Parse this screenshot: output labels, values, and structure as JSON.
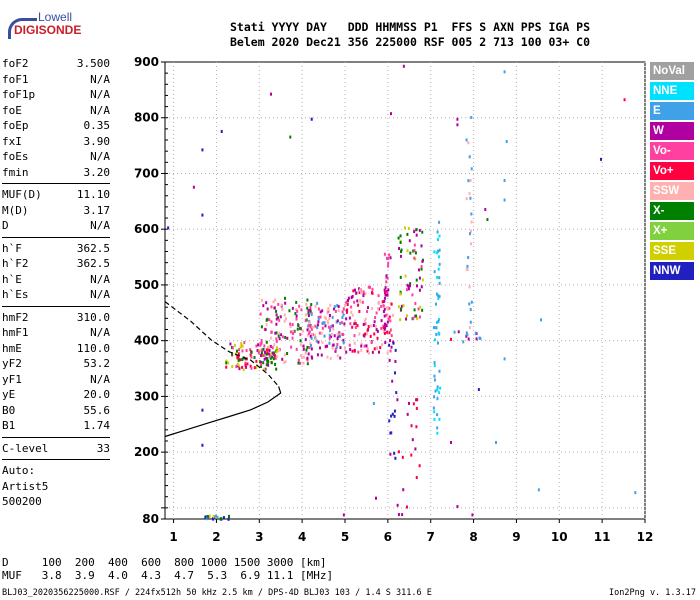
{
  "logo": {
    "top": "Lowell",
    "bottom": "DIGISONDE"
  },
  "header": {
    "line1": "Stati YYYY DAY   DDD HHMMSS P1  FFS S AXN PPS IGA PS",
    "line2": "Belem 2020 Dec21 356 225000 RSF 005 2 713 100 03+ C0"
  },
  "params": [
    {
      "label": "foF2",
      "value": "3.500"
    },
    {
      "label": "foF1",
      "value": "N/A"
    },
    {
      "label": "foF1p",
      "value": "N/A"
    },
    {
      "label": "foE",
      "value": "N/A"
    },
    {
      "label": "foEp",
      "value": "0.35"
    },
    {
      "label": "fxI",
      "value": "3.90"
    },
    {
      "label": "foEs",
      "value": "N/A"
    },
    {
      "label": "fmin",
      "value": "3.20"
    },
    {
      "sep": true
    },
    {
      "label": "MUF(D)",
      "value": "11.10"
    },
    {
      "label": "M(D)",
      "value": "3.17"
    },
    {
      "label": "D",
      "value": "N/A"
    },
    {
      "sep": true
    },
    {
      "label": "h`F",
      "value": "362.5"
    },
    {
      "label": "h`F2",
      "value": "362.5"
    },
    {
      "label": "h`E",
      "value": "N/A"
    },
    {
      "label": "h`Es",
      "value": "N/A"
    },
    {
      "sep": true
    },
    {
      "label": "hmF2",
      "value": "310.0"
    },
    {
      "label": "hmF1",
      "value": "N/A"
    },
    {
      "label": "hmE",
      "value": "110.0"
    },
    {
      "label": "yF2",
      "value": "53.2"
    },
    {
      "label": "yF1",
      "value": "N/A"
    },
    {
      "label": "yE",
      "value": "20.0"
    },
    {
      "label": "B0",
      "value": "55.6"
    },
    {
      "label": "B1",
      "value": "1.74"
    },
    {
      "sep": true
    },
    {
      "label": "C-level",
      "value": "33"
    },
    {
      "sep": true
    },
    {
      "auto": "Auto:"
    },
    {
      "auto": "Artist5"
    },
    {
      "auto": "500200"
    }
  ],
  "legend": [
    {
      "label": "NoVal",
      "color": "#a0a0a0"
    },
    {
      "label": "NNE",
      "color": "#00e0ff"
    },
    {
      "label": "E",
      "color": "#40a0e8"
    },
    {
      "label": "W",
      "color": "#b000a0"
    },
    {
      "label": "Vo-",
      "color": "#ff40a0"
    },
    {
      "label": "Vo+",
      "color": "#ff0040"
    },
    {
      "label": "SSW",
      "color": "#ffb0b0"
    },
    {
      "label": "X-",
      "color": "#008000"
    },
    {
      "label": "X+",
      "color": "#80d040"
    },
    {
      "label": "SSE",
      "color": "#d0d000"
    },
    {
      "label": "NNW",
      "color": "#2020c0"
    }
  ],
  "bottom": {
    "line1": "D     100  200  400  600  800 1000 1500 3000 [km]",
    "line2": "MUF   3.8  3.9  4.0  4.3  4.7  5.3  6.9 11.1 [MHz]"
  },
  "footer": {
    "left": "BLJ03_2020356225000.RSF / 224fx512h 50 kHz 2.5 km / DPS-4D BLJ03 103 / 1.4 S 311.6 E",
    "right": "Ion2Png v. 1.3.17"
  },
  "chart_data": {
    "type": "scatter",
    "xlim": [
      0.8,
      12.0
    ],
    "ylim": [
      80,
      900
    ],
    "xticks": [
      1,
      2,
      3,
      4,
      5,
      6,
      7,
      8,
      9,
      10,
      11,
      12
    ],
    "yticks": [
      80,
      100,
      200,
      300,
      400,
      500,
      600,
      700,
      800,
      900
    ],
    "grid": true,
    "profile_solid": [
      [
        0.8,
        228
      ],
      [
        1.3,
        240
      ],
      [
        1.8,
        252
      ],
      [
        2.3,
        264
      ],
      [
        2.8,
        276
      ],
      [
        3.2,
        290
      ],
      [
        3.5,
        306
      ],
      [
        3.45,
        318
      ]
    ],
    "profile_dashed": [
      [
        0.8,
        470
      ],
      [
        1.4,
        435
      ],
      [
        1.9,
        400
      ],
      [
        2.3,
        380
      ],
      [
        2.8,
        365
      ],
      [
        3.2,
        340
      ],
      [
        3.45,
        318
      ]
    ],
    "clusters": [
      {
        "x": [
          2.2,
          3.4
        ],
        "y": [
          350,
          400
        ],
        "colors": [
          "#b000a0",
          "#ff40a0",
          "#008000",
          "#d0d000",
          "#ff0040"
        ],
        "n": 110
      },
      {
        "x": [
          3.0,
          4.2
        ],
        "y": [
          360,
          480
        ],
        "colors": [
          "#b000a0",
          "#ff40a0",
          "#ffb0b0",
          "#008000"
        ],
        "n": 140
      },
      {
        "x": [
          4.1,
          5.0
        ],
        "y": [
          370,
          470
        ],
        "colors": [
          "#b000a0",
          "#ff40a0",
          "#ffb0b0",
          "#40a0e8"
        ],
        "n": 120
      },
      {
        "x": [
          5.0,
          6.1
        ],
        "y": [
          380,
          500
        ],
        "colors": [
          "#b000a0",
          "#ff40a0",
          "#ffb0b0",
          "#ff0040"
        ],
        "n": 140
      },
      {
        "x": [
          6.2,
          6.8
        ],
        "y": [
          440,
          610
        ],
        "colors": [
          "#b000a0",
          "#008000",
          "#ff40a0",
          "#d0d000"
        ],
        "n": 70
      },
      {
        "x": [
          5.9,
          6.05
        ],
        "y": [
          400,
          560
        ],
        "colors": [
          "#b000a0",
          "#ff40a0"
        ],
        "n": 25
      },
      {
        "x": [
          7.05,
          7.2
        ],
        "y": [
          230,
          620
        ],
        "colors": [
          "#40a0e8",
          "#00e0ff"
        ],
        "n": 50
      },
      {
        "x": [
          7.8,
          7.95
        ],
        "y": [
          420,
          860
        ],
        "colors": [
          "#40a0e8",
          "#ffb0b0"
        ],
        "n": 25
      },
      {
        "x": [
          6.0,
          6.2
        ],
        "y": [
          180,
          400
        ],
        "colors": [
          "#b000a0",
          "#2020c0"
        ],
        "n": 20
      },
      {
        "x": [
          6.2,
          6.8
        ],
        "y": [
          90,
          300
        ],
        "colors": [
          "#b000a0",
          "#ff0040"
        ],
        "n": 20
      },
      {
        "x": [
          1.7,
          2.3
        ],
        "y": [
          82,
          88
        ],
        "colors": [
          "#d0d000",
          "#40a0e8",
          "#008000",
          "#2020c0"
        ],
        "n": 20
      },
      {
        "x": [
          7.5,
          8.2
        ],
        "y": [
          400,
          420
        ],
        "colors": [
          "#40a0e8",
          "#b000a0"
        ],
        "n": 12
      }
    ],
    "singles": [
      {
        "x": 1.45,
        "y": 678,
        "c": "#b000a0"
      },
      {
        "x": 2.1,
        "y": 778,
        "c": "#2020c0"
      },
      {
        "x": 1.65,
        "y": 745,
        "c": "#2020c0"
      },
      {
        "x": 1.65,
        "y": 628,
        "c": "#2020c0"
      },
      {
        "x": 3.25,
        "y": 845,
        "c": "#b000a0"
      },
      {
        "x": 4.2,
        "y": 800,
        "c": "#2020c0"
      },
      {
        "x": 3.7,
        "y": 768,
        "c": "#008000"
      },
      {
        "x": 6.35,
        "y": 895,
        "c": "#b000a0"
      },
      {
        "x": 6.05,
        "y": 810,
        "c": "#b000a0"
      },
      {
        "x": 8.7,
        "y": 885,
        "c": "#40a0e8"
      },
      {
        "x": 8.7,
        "y": 690,
        "c": "#40a0e8"
      },
      {
        "x": 8.7,
        "y": 655,
        "c": "#40a0e8"
      },
      {
        "x": 8.75,
        "y": 760,
        "c": "#40a0e8"
      },
      {
        "x": 10.95,
        "y": 728,
        "c": "#2020c0"
      },
      {
        "x": 11.5,
        "y": 835,
        "c": "#ff0040"
      },
      {
        "x": 8.25,
        "y": 638,
        "c": "#b000a0"
      },
      {
        "x": 8.3,
        "y": 620,
        "c": "#008000"
      },
      {
        "x": 9.55,
        "y": 440,
        "c": "#40a0e8"
      },
      {
        "x": 8.7,
        "y": 370,
        "c": "#40a0e8"
      },
      {
        "x": 8.5,
        "y": 220,
        "c": "#40a0e8"
      },
      {
        "x": 9.5,
        "y": 135,
        "c": "#40a0e8"
      },
      {
        "x": 11.75,
        "y": 130,
        "c": "#40a0e8"
      },
      {
        "x": 0.85,
        "y": 605,
        "c": "#2020c0"
      },
      {
        "x": 1.65,
        "y": 278,
        "c": "#2020c0"
      },
      {
        "x": 1.65,
        "y": 215,
        "c": "#2020c0"
      },
      {
        "x": 4.95,
        "y": 90,
        "c": "#b000a0"
      },
      {
        "x": 5.7,
        "y": 120,
        "c": "#b000a0"
      },
      {
        "x": 5.65,
        "y": 290,
        "c": "#40a0e8"
      },
      {
        "x": 7.95,
        "y": 90,
        "c": "#b000a0"
      },
      {
        "x": 7.6,
        "y": 105,
        "c": "#b000a0"
      },
      {
        "x": 7.45,
        "y": 220,
        "c": "#b000a0"
      },
      {
        "x": 8.1,
        "y": 315,
        "c": "#2020c0"
      },
      {
        "x": 7.45,
        "y": 405,
        "c": "#ff0040"
      },
      {
        "x": 7.6,
        "y": 800,
        "c": "#b000a0"
      },
      {
        "x": 7.6,
        "y": 790,
        "c": "#b000a0"
      }
    ]
  }
}
